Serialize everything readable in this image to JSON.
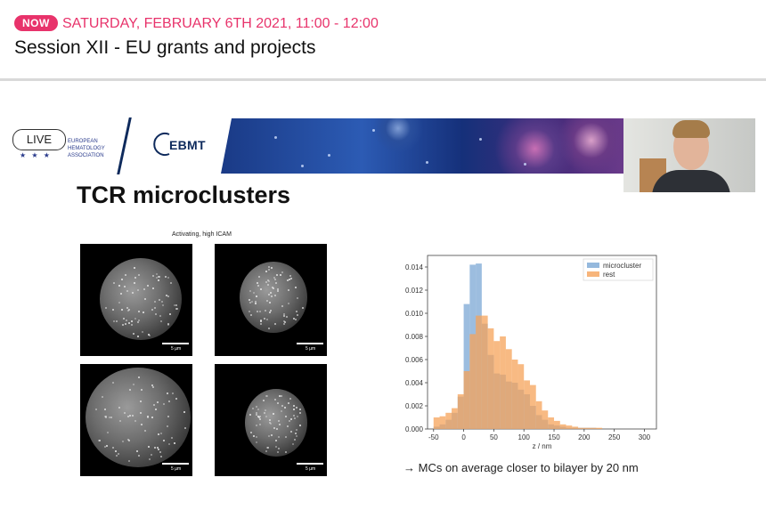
{
  "header": {
    "now_label": "NOW",
    "date_time": "SATURDAY, FEBRUARY 6TH 2021, 11:00 - 12:00",
    "session_title": "Session XII - EU grants and projects"
  },
  "slide": {
    "live_label": "LIVE",
    "eha_org": "EUROPEAN HEMATOLOGY ASSOCIATION",
    "ebmt_logo_text": "EBMT",
    "title": "TCR microclusters",
    "micrograph_caption": "Activating, high ICAM",
    "scale_label": "5 µm",
    "conclusion": "→ MCs on average closer to bilayer by 20 nm"
  },
  "colors": {
    "accent": "#e8336b",
    "microcluster": "#7ba7d4",
    "rest": "#f5a35a"
  },
  "chart_data": {
    "type": "bar",
    "xlabel": "z / nm",
    "ylabel": "",
    "xlim": [
      -60,
      320
    ],
    "ylim": [
      0,
      0.015
    ],
    "xticks": [
      -50,
      0,
      50,
      100,
      150,
      200,
      250,
      300
    ],
    "yticks": [
      0.0,
      0.002,
      0.004,
      0.006,
      0.008,
      0.01,
      0.012,
      0.014
    ],
    "ytick_labels": [
      "0.000",
      "0.002",
      "0.004",
      "0.006",
      "0.008",
      "0.010",
      "0.012",
      "0.014"
    ],
    "legend_position": "top-right",
    "bin_edges": [
      -50,
      -40,
      -30,
      -20,
      -10,
      0,
      10,
      20,
      30,
      40,
      50,
      60,
      70,
      80,
      90,
      100,
      110,
      120,
      130,
      140,
      150,
      160,
      170,
      180,
      190,
      200,
      210,
      220,
      230,
      240,
      250,
      260,
      270,
      280,
      290,
      300
    ],
    "series": [
      {
        "name": "microcluster",
        "color": "#7ba7d4",
        "values": [
          0.0002,
          0.0004,
          0.0008,
          0.0014,
          0.0028,
          0.0108,
          0.0142,
          0.0143,
          0.0091,
          0.0064,
          0.0048,
          0.0047,
          0.0041,
          0.004,
          0.0034,
          0.003,
          0.002,
          0.0012,
          0.0008,
          0.0004,
          0.0003,
          0.0002,
          0.0001,
          0.0001,
          0.0001,
          0.0001,
          0.0001,
          0.0,
          0.0,
          0.0,
          0.0,
          0.0,
          0.0,
          0.0,
          0.0
        ]
      },
      {
        "name": "rest",
        "color": "#f5a35a",
        "values": [
          0.001,
          0.0011,
          0.0014,
          0.0018,
          0.003,
          0.005,
          0.0082,
          0.0098,
          0.0098,
          0.0087,
          0.0076,
          0.008,
          0.0069,
          0.006,
          0.0056,
          0.0042,
          0.0038,
          0.0024,
          0.0016,
          0.001,
          0.0007,
          0.0004,
          0.0003,
          0.0002,
          0.0001,
          0.0001,
          0.0001,
          0.0001,
          0.0,
          0.0,
          0.0,
          0.0,
          0.0,
          0.0,
          0.0
        ]
      }
    ]
  }
}
